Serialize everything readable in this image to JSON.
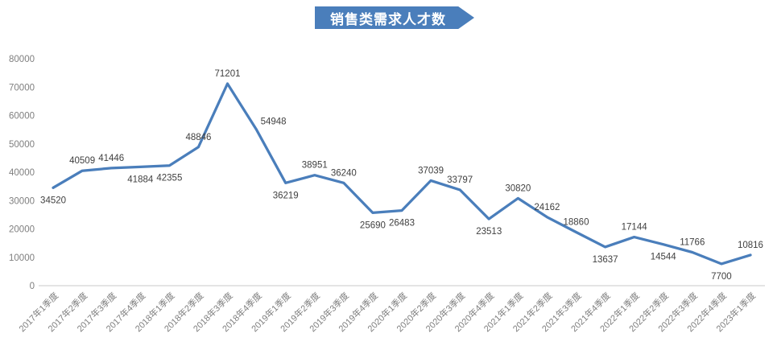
{
  "title": "销售类需求人才数",
  "colors": {
    "line": "#4a7ebb",
    "banner": "#4a7ebb",
    "data_label_text": "#404040",
    "axis_text": "#7f7f7f",
    "axis_line": "#c9c9c9"
  },
  "chart_data": {
    "type": "line",
    "title": "销售类需求人才数",
    "categories": [
      "2017年1季度",
      "2017年2季度",
      "2017年3季度",
      "2017年4季度",
      "2018年1季度",
      "2018年2季度",
      "2018年3季度",
      "2018年4季度",
      "2019年1季度",
      "2019年2季度",
      "2019年3季度",
      "2019年4季度",
      "2020年1季度",
      "2020年2季度",
      "2020年3季度",
      "2020年4季度",
      "2021年1季度",
      "2021年2季度",
      "2021年3季度",
      "2021年4季度",
      "2022年1季度",
      "2022年2季度",
      "2022年3季度",
      "2022年4季度",
      "2023年1季度"
    ],
    "values": [
      34520,
      40509,
      41446,
      41884,
      42355,
      48846,
      71201,
      54948,
      36219,
      38951,
      36240,
      25690,
      26483,
      37039,
      33797,
      23513,
      30820,
      24162,
      18860,
      13637,
      17144,
      14544,
      11766,
      7700,
      10816
    ],
    "label_positions": [
      "below",
      "above",
      "above",
      "below",
      "below",
      "above",
      "above",
      "right",
      "below",
      "above",
      "above",
      "below",
      "below",
      "above",
      "above",
      "below",
      "above",
      "above",
      "above",
      "below",
      "above",
      "below",
      "above",
      "below",
      "above"
    ],
    "xlabel": "",
    "ylabel": "",
    "ylim": [
      0,
      80000
    ],
    "ytick_step": 10000,
    "grid": false,
    "legend": "none",
    "data_labels_shown": true,
    "x_labels_rotated_degrees": 45
  }
}
